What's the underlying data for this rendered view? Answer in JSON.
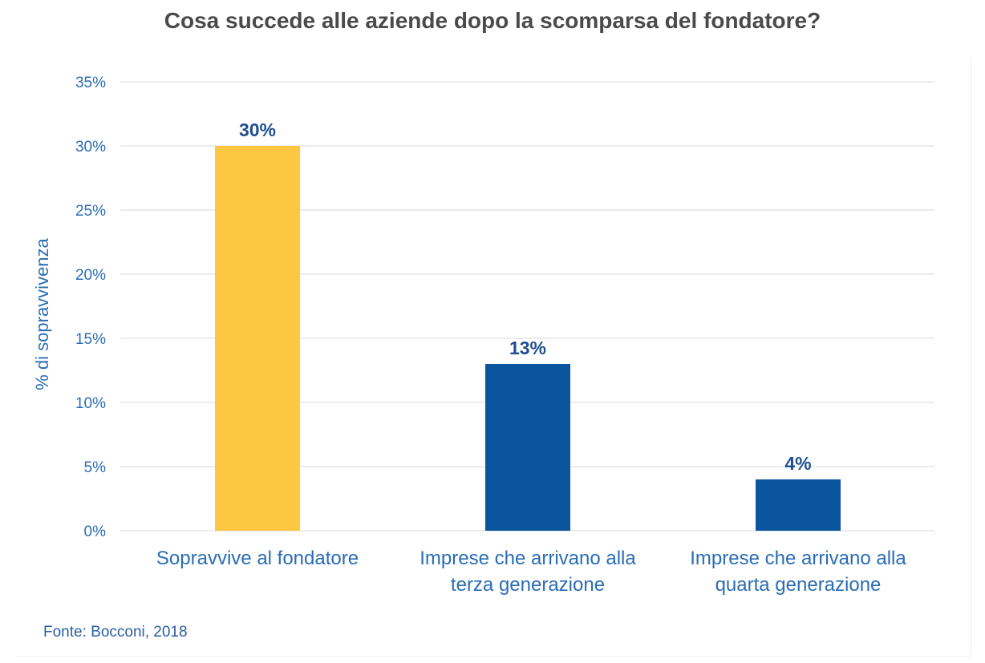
{
  "title": "Cosa succede alle aziende dopo la scomparsa del fondatore?",
  "source": "Fonte: Bocconi, 2018",
  "colors": {
    "highlight_bar": "#fcc841",
    "bar": "#0a559e",
    "axis_text": "#2a6db5",
    "data_label": "#1f4f8f",
    "grid": "#e6e6e6"
  },
  "chart_data": {
    "type": "bar",
    "title": "Cosa succede alle aziende dopo la scomparsa del fondatore?",
    "xlabel": "",
    "ylabel": "% di sopravvivenza",
    "ylim": [
      0,
      35
    ],
    "yticks": [
      0,
      5,
      10,
      15,
      20,
      25,
      30,
      35
    ],
    "ytick_labels": [
      "0%",
      "5%",
      "10%",
      "15%",
      "20%",
      "25%",
      "30%",
      "35%"
    ],
    "grid": true,
    "categories": [
      [
        "Sopravvive al fondatore"
      ],
      [
        "Imprese che arrivano alla",
        "terza generazione"
      ],
      [
        "Imprese che arrivano alla",
        "quarta generazione"
      ]
    ],
    "values": [
      30,
      13,
      4
    ],
    "data_labels": [
      "30%",
      "13%",
      "4%"
    ],
    "highlighted_index": 0
  }
}
